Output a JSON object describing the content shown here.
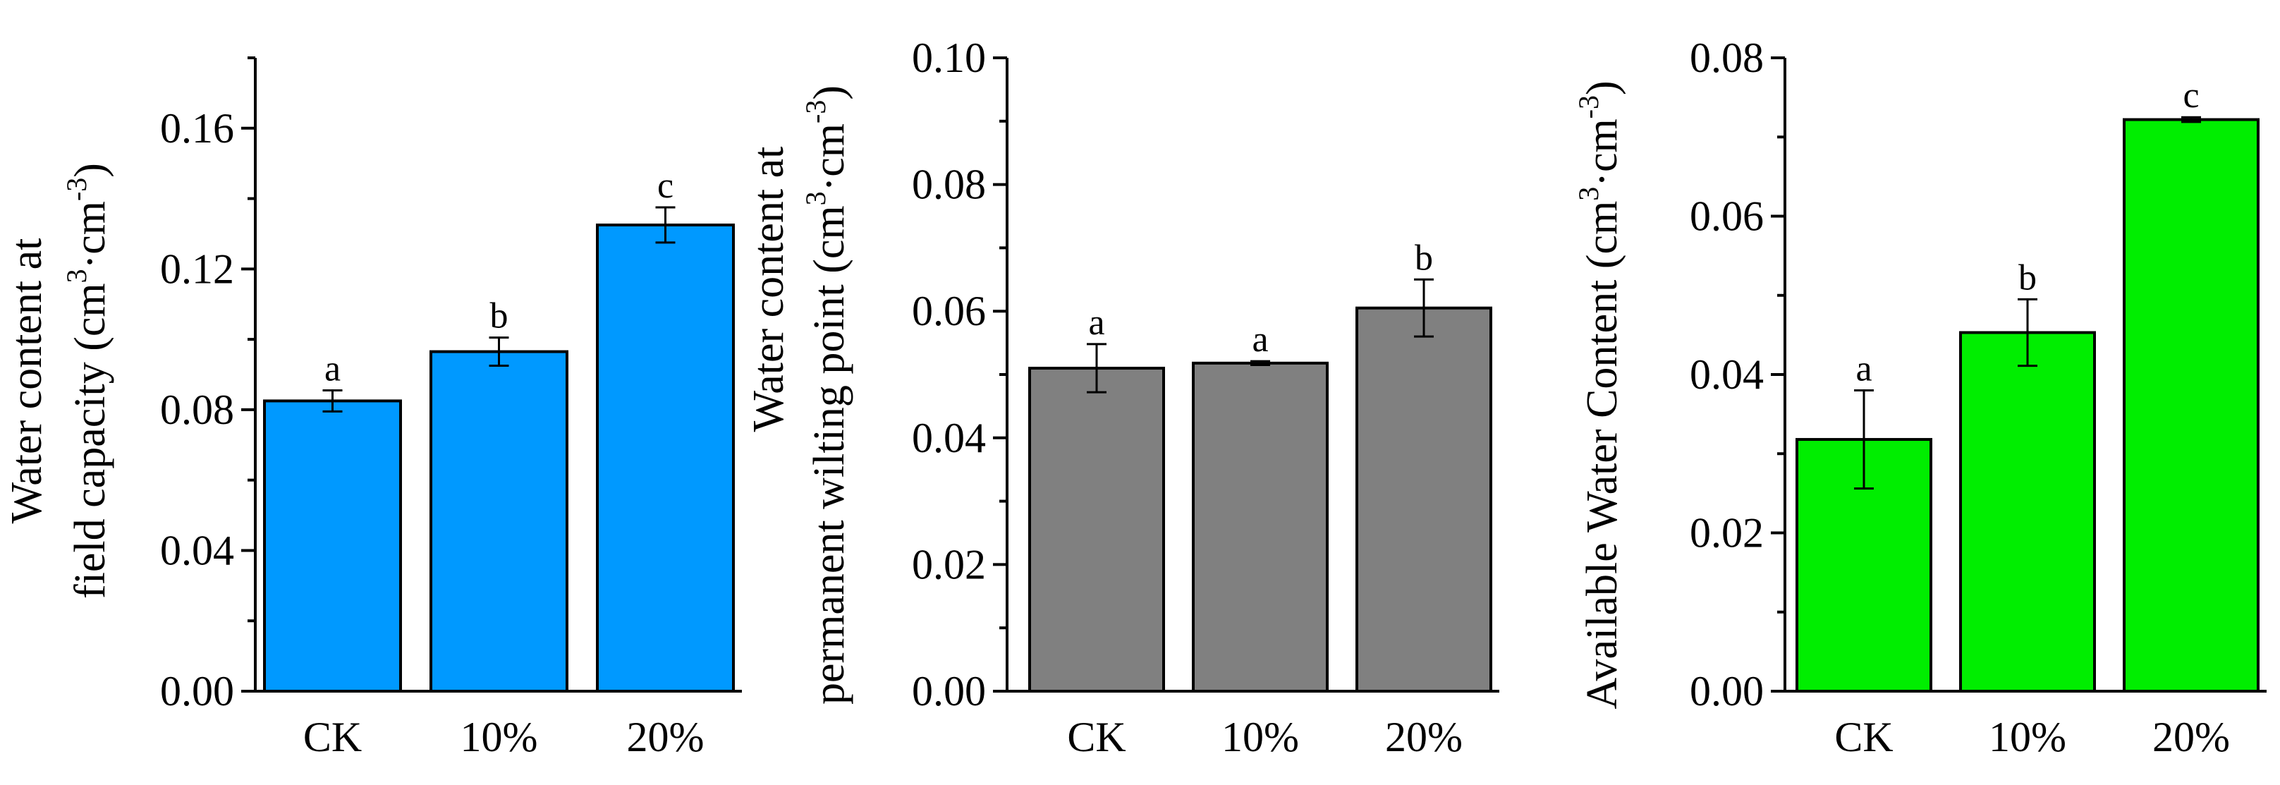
{
  "chart_data": [
    {
      "type": "bar",
      "categories": [
        "CK",
        "10%",
        "20%"
      ],
      "values": [
        0.0825,
        0.0965,
        0.1325
      ],
      "errors": [
        0.003,
        0.004,
        0.005
      ],
      "significance": [
        "a",
        "b",
        "c"
      ],
      "bar_color": "#0099ff",
      "ylim": [
        0,
        0.18
      ],
      "yticks": [
        "0.00",
        "0.04",
        "0.08",
        "0.12",
        "0.16"
      ],
      "ytick_values": [
        0,
        0.04,
        0.08,
        0.12,
        0.16
      ],
      "ylabel_line1": "Water content at",
      "ylabel_line2_text": "field capacity (cm",
      "ylabel_unit_mid": "·cm",
      "ylabel_exp": "3",
      "ylabel_exp_neg": "-3",
      "ylabel_close": ")",
      "xlabel": "",
      "title": ""
    },
    {
      "type": "bar",
      "categories": [
        "CK",
        "10%",
        "20%"
      ],
      "values": [
        0.051,
        0.0518,
        0.0605
      ],
      "errors": [
        0.0038,
        0.0003,
        0.0045
      ],
      "significance": [
        "a",
        "a",
        "b"
      ],
      "bar_color": "#808080",
      "ylim": [
        0,
        0.1
      ],
      "yticks": [
        "0.00",
        "0.02",
        "0.04",
        "0.06",
        "0.08",
        "0.10"
      ],
      "ytick_values": [
        0,
        0.02,
        0.04,
        0.06,
        0.08,
        0.1
      ],
      "ylabel_line1": "Water content at",
      "ylabel_line2_text": "permanent wilting point (cm",
      "ylabel_unit_mid": "·cm",
      "ylabel_exp": "3",
      "ylabel_exp_neg": "-3",
      "ylabel_close": ")",
      "xlabel": "",
      "title": ""
    },
    {
      "type": "bar",
      "categories": [
        "CK",
        "10%",
        "20%"
      ],
      "values": [
        0.0318,
        0.0453,
        0.0722
      ],
      "errors": [
        0.0062,
        0.0042,
        0.0003
      ],
      "significance": [
        "a",
        "b",
        "c"
      ],
      "bar_color": "#00ee00",
      "ylim": [
        0,
        0.08
      ],
      "yticks": [
        "0.00",
        "0.02",
        "0.04",
        "0.06",
        "0.08"
      ],
      "ytick_values": [
        0,
        0.02,
        0.04,
        0.06,
        0.08
      ],
      "ylabel_line1": "",
      "ylabel_line2_text": "Available Water Content (cm",
      "ylabel_unit_mid": "·cm",
      "ylabel_exp": "3",
      "ylabel_exp_neg": "-3",
      "ylabel_close": ")",
      "xlabel": "",
      "title": ""
    }
  ]
}
